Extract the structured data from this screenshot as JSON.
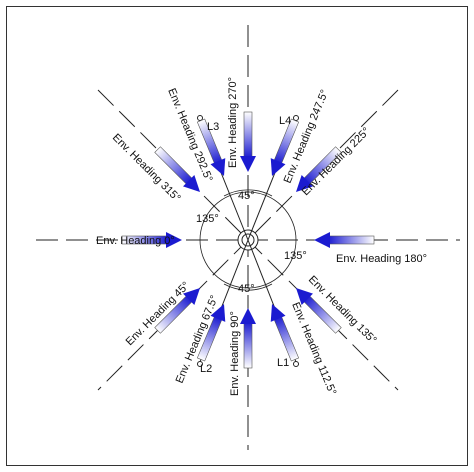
{
  "labels": {
    "h0": "Env. Heading 0°",
    "h45": "Env. Heading 45°",
    "h90": "Env. Heading 90°",
    "h112": "Env. Heading 112.5°",
    "h135": "Env. Heading 135°",
    "h180": "Env. Heading 180°",
    "h225": "Env. Heading 225°",
    "h247": "Env. Heading 247.5°",
    "h270": "Env. Heading 270°",
    "h292": "Env. Heading 292.5°",
    "h315": "Env. Heading 315°",
    "h67": "Env. Heading 67.5°"
  },
  "angles": {
    "top": "45°",
    "bottom": "45°",
    "left": "135°",
    "right": "135°"
  },
  "lines": {
    "l1": "L1",
    "l2": "L2",
    "l3": "L3",
    "l4": "L4"
  },
  "colors": {
    "arrow_dark": "#1b1bd0",
    "arrow_light": "#ffffff",
    "line": "#222222"
  }
}
